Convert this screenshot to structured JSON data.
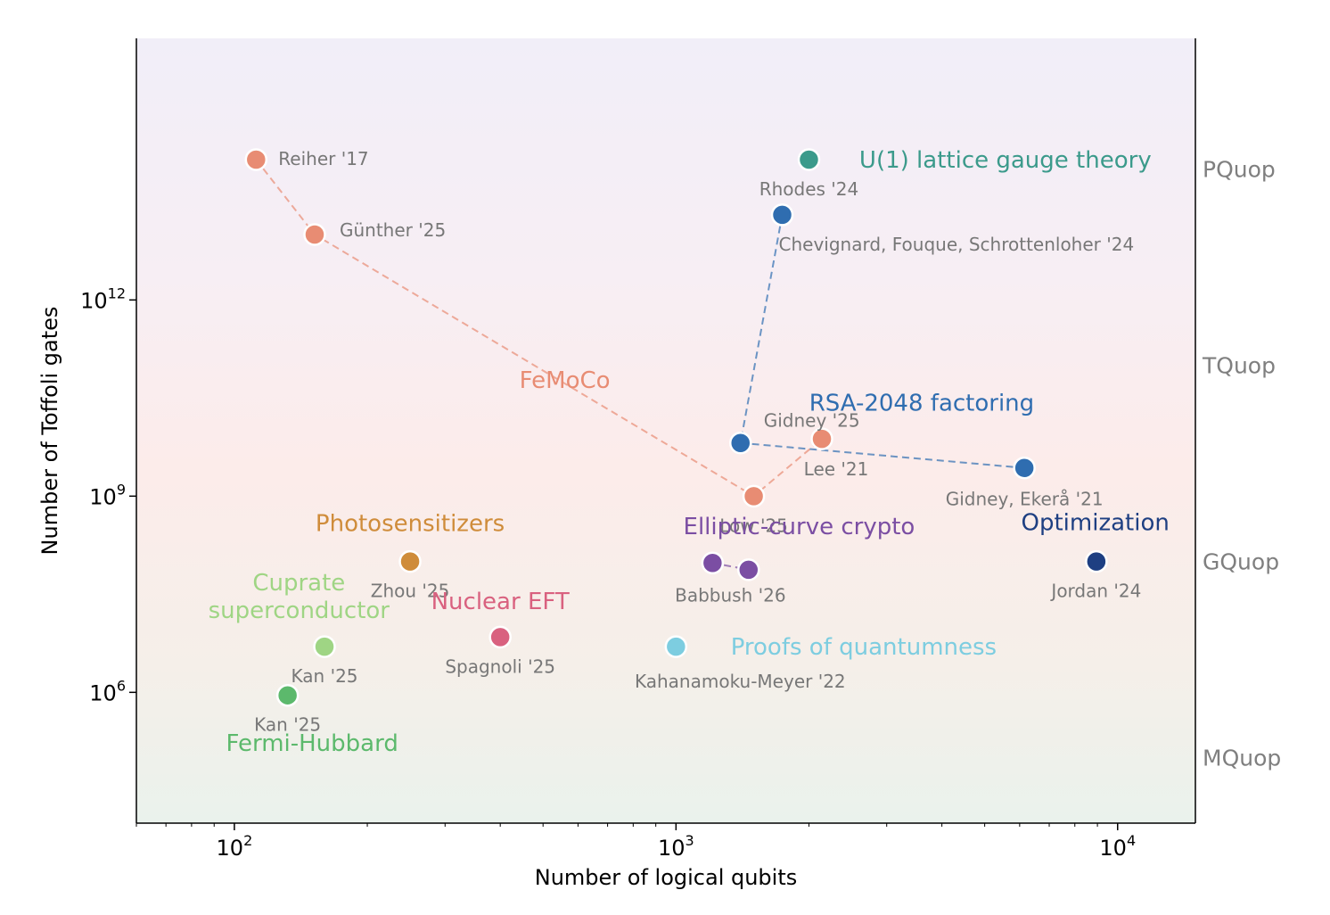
{
  "chart_data": {
    "type": "scatter",
    "xlabel": "Number of logical qubits",
    "ylabel": "Number of Toffoli gates",
    "x_scale": "log",
    "y_scale": "log",
    "xlim": [
      60,
      15000
    ],
    "ylim": [
      10000,
      10000000000000000
    ],
    "x_ticks": [
      {
        "value": 100,
        "base": "10",
        "exp": "2"
      },
      {
        "value": 1000,
        "base": "10",
        "exp": "3"
      },
      {
        "value": 10000,
        "base": "10",
        "exp": "4"
      }
    ],
    "y_ticks": [
      {
        "value": 1000000,
        "base": "10",
        "exp": "6"
      },
      {
        "value": 1000000000,
        "base": "10",
        "exp": "9"
      },
      {
        "value": 1000000000000,
        "base": "10",
        "exp": "12"
      }
    ],
    "right_labels": [
      {
        "text": "MQuop",
        "y": 100000
      },
      {
        "text": "GQuop",
        "y": 100000000
      },
      {
        "text": "TQuop",
        "y": 100000000000
      },
      {
        "text": "PQuop",
        "y": 100000000000000
      }
    ],
    "background_gradient": [
      "#eaf2ec",
      "#f5efe9",
      "#fcecea",
      "#f7eef4",
      "#f1eef8"
    ],
    "groups": [
      {
        "name": "FeMoCo",
        "color": "#e88c73",
        "connected": true,
        "label": {
          "x": 560,
          "y": 60000000000,
          "anchor": "middle"
        },
        "points": [
          {
            "ref": "Reiher '17",
            "x": 112,
            "y": 140000000000000
          },
          {
            "ref": "Günther '25",
            "x": 152,
            "y": 10000000000000
          },
          {
            "ref": "Low '25",
            "x": 1500,
            "y": 1000000000
          },
          {
            "ref": "Lee '21",
            "x": 2140,
            "y": 7500000000
          }
        ]
      },
      {
        "name": "RSA-2048 factoring",
        "color": "#2f6db0",
        "connected": true,
        "label": {
          "x": 3600,
          "y": 27000000000,
          "anchor": "middle"
        },
        "points": [
          {
            "ref": "Chevignard, Fouque, Schrottenloher '24",
            "x": 1740,
            "y": 20000000000000
          },
          {
            "ref": "Gidney '25",
            "x": 1400,
            "y": 6500000000
          },
          {
            "ref": "Gidney, Ekerå '21",
            "x": 6150,
            "y": 2700000000
          }
        ]
      },
      {
        "name": "U(1) lattice gauge theory",
        "color": "#3b9a8b",
        "connected": false,
        "label": {
          "x": 2600,
          "y": 140000000000000,
          "anchor": "start"
        },
        "points": [
          {
            "ref": "Rhodes '24",
            "x": 2000,
            "y": 140000000000000
          }
        ]
      },
      {
        "name": "Elliptic-curve crypto",
        "color": "#7b4ea3",
        "connected": true,
        "label": {
          "x": 1900,
          "y": 350000000,
          "anchor": "middle"
        },
        "points": [
          {
            "ref": "Babbush '26",
            "x": 1210,
            "y": 95000000
          },
          {
            "ref": "",
            "x": 1460,
            "y": 75000000
          }
        ]
      },
      {
        "name": "Optimization",
        "color": "#1e3f82",
        "connected": false,
        "label": {
          "x": 8900,
          "y": 400000000,
          "anchor": "middle"
        },
        "points": [
          {
            "ref": "Jordan '24",
            "x": 8950,
            "y": 100000000
          }
        ]
      },
      {
        "name": "Photosensitizers",
        "color": "#cf8c3a",
        "connected": false,
        "label": {
          "x": 250,
          "y": 390000000,
          "anchor": "middle"
        },
        "points": [
          {
            "ref": "Zhou '25",
            "x": 250,
            "y": 100000000
          }
        ]
      },
      {
        "name": "Nuclear EFT",
        "color": "#d9617f",
        "connected": false,
        "label": {
          "x": 400,
          "y": 25000000,
          "anchor": "middle"
        },
        "points": [
          {
            "ref": "Spagnoli '25",
            "x": 400,
            "y": 7000000
          }
        ]
      },
      {
        "name": "Proofs of quantumness",
        "color": "#7dcde0",
        "connected": false,
        "label": {
          "x": 1330,
          "y": 5000000,
          "anchor": "start"
        },
        "points": [
          {
            "ref": "Kahanamoku-Meyer '22",
            "x": 1000,
            "y": 5000000
          }
        ]
      },
      {
        "name": "Cuprate superconductor",
        "name_lines": [
          "Cuprate",
          "superconductor"
        ],
        "color": "#9fd584",
        "connected": false,
        "label": {
          "x": 140,
          "y": 30000000,
          "anchor": "middle"
        },
        "points": [
          {
            "ref": "Kan '25",
            "x": 160,
            "y": 5000000
          }
        ]
      },
      {
        "name": "Fermi-Hubbard",
        "color": "#5cb96c",
        "connected": false,
        "label": {
          "x": 150,
          "y": 170000,
          "anchor": "middle"
        },
        "points": [
          {
            "ref": "Kan '25",
            "x": 132,
            "y": 900000
          }
        ]
      }
    ]
  }
}
